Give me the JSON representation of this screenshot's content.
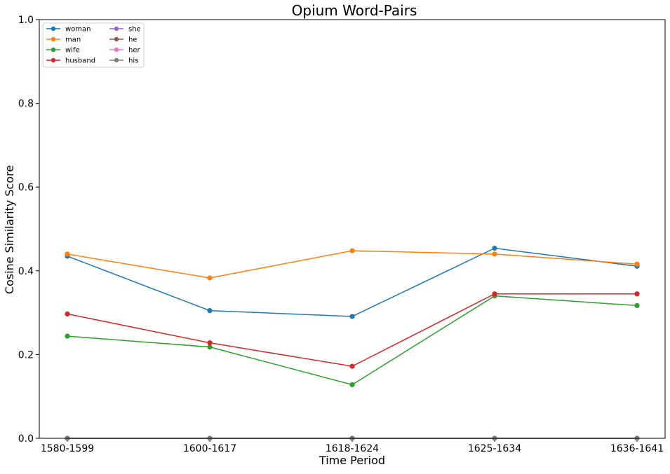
{
  "chart_data": {
    "type": "line",
    "title": "Opium Word-Pairs",
    "xlabel": "Time Period",
    "ylabel": "Cosine Similarity Score",
    "ylim": [
      0,
      1
    ],
    "yticks": [
      "0.0",
      "0.2",
      "0.4",
      "0.6",
      "0.8",
      "1.0"
    ],
    "categories": [
      "1580-1599",
      "1600-1617",
      "1618-1624",
      "1625-1634",
      "1636-1641"
    ],
    "grid": false,
    "legend_position": "top-left",
    "legend_columns": 2,
    "series": [
      {
        "name": "woman",
        "color": "#1f77b4",
        "values": [
          0.435,
          0.305,
          0.291,
          0.454,
          0.411
        ]
      },
      {
        "name": "man",
        "color": "#ff7f0e",
        "values": [
          0.44,
          0.383,
          0.448,
          0.44,
          0.416
        ]
      },
      {
        "name": "wife",
        "color": "#2ca02c",
        "values": [
          0.244,
          0.218,
          0.128,
          0.34,
          0.317
        ]
      },
      {
        "name": "husband",
        "color": "#d62728",
        "values": [
          0.297,
          0.228,
          0.172,
          0.345,
          0.345
        ]
      },
      {
        "name": "she",
        "color": "#9467bd",
        "values": [
          0,
          0,
          0,
          0,
          0
        ]
      },
      {
        "name": "he",
        "color": "#8c564b",
        "values": [
          0,
          0,
          0,
          0,
          0
        ]
      },
      {
        "name": "her",
        "color": "#e377c2",
        "values": [
          0,
          0,
          0,
          0,
          0
        ]
      },
      {
        "name": "his",
        "color": "#7f7f7f",
        "values": [
          0,
          0,
          0,
          0,
          0
        ]
      }
    ]
  }
}
